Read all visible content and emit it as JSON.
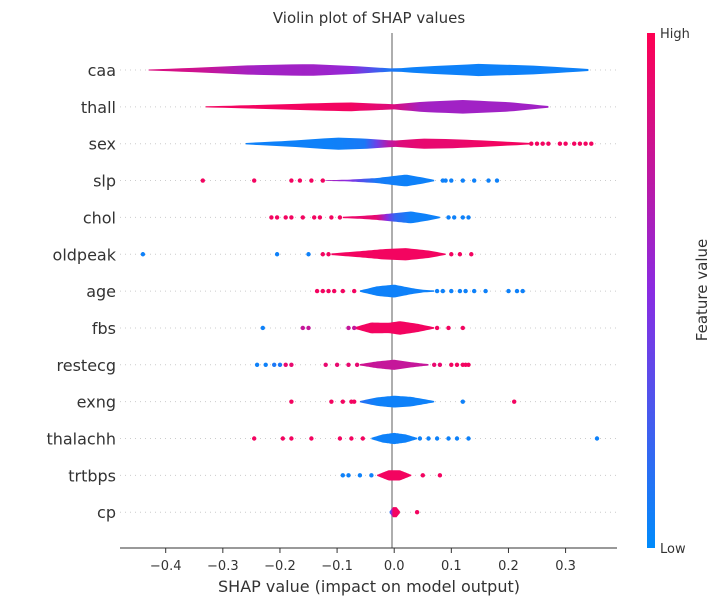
{
  "chart_data": {
    "type": "violin",
    "title": "Violin plot of SHAP values",
    "xlabel": "SHAP value (impact on model output)",
    "xlim": [
      -0.48,
      0.39
    ],
    "xticks": [
      -0.4,
      -0.3,
      -0.2,
      -0.1,
      0.0,
      0.1,
      0.2,
      0.3
    ],
    "xtick_labels": [
      "−0.4",
      "−0.3",
      "−0.2",
      "−0.1",
      "0.0",
      "0.1",
      "0.2",
      "0.3"
    ],
    "colorbar": {
      "label": "Feature value",
      "high": "High",
      "low": "Low",
      "high_color": "#ff0052",
      "mid_color": "#8a2be2",
      "low_color": "#008bfb"
    },
    "features": [
      {
        "name": "caa",
        "range": [
          -0.43,
          0.34
        ],
        "violin": [
          [
            -0.43,
            0.03,
            0.85
          ],
          [
            -0.35,
            0.13,
            0.8
          ],
          [
            -0.25,
            0.28,
            0.6
          ],
          [
            -0.15,
            0.35,
            0.6
          ],
          [
            -0.08,
            0.25,
            0.55
          ],
          [
            0.0,
            0.08,
            0.05
          ],
          [
            0.05,
            0.2,
            0.05
          ],
          [
            0.15,
            0.36,
            0.05
          ],
          [
            0.25,
            0.25,
            0.05
          ],
          [
            0.34,
            0.06,
            0.05
          ]
        ],
        "outliers": []
      },
      {
        "name": "thall",
        "range": [
          -0.33,
          0.27
        ],
        "violin": [
          [
            -0.33,
            0.03,
            0.95
          ],
          [
            -0.25,
            0.1,
            0.95
          ],
          [
            -0.15,
            0.2,
            0.95
          ],
          [
            -0.08,
            0.26,
            0.95
          ],
          [
            0.0,
            0.15,
            0.85
          ],
          [
            0.05,
            0.3,
            0.6
          ],
          [
            0.12,
            0.4,
            0.6
          ],
          [
            0.2,
            0.28,
            0.6
          ],
          [
            0.27,
            0.05,
            0.6
          ]
        ],
        "outliers": []
      },
      {
        "name": "sex",
        "range": [
          -0.26,
          0.24
        ],
        "violin": [
          [
            -0.26,
            0.04,
            0.05
          ],
          [
            -0.18,
            0.18,
            0.05
          ],
          [
            -0.1,
            0.36,
            0.05
          ],
          [
            -0.05,
            0.3,
            0.1
          ],
          [
            0.0,
            0.18,
            0.85
          ],
          [
            0.05,
            0.3,
            0.9
          ],
          [
            0.1,
            0.27,
            0.9
          ],
          [
            0.18,
            0.15,
            0.95
          ],
          [
            0.24,
            0.04,
            0.95
          ]
        ],
        "outliers": [
          [
            0.24,
            0.95
          ],
          [
            0.25,
            0.95
          ],
          [
            0.26,
            0.95
          ],
          [
            0.27,
            0.95
          ],
          [
            0.29,
            0.95
          ],
          [
            0.3,
            0.95
          ],
          [
            0.315,
            0.95
          ],
          [
            0.325,
            0.95
          ],
          [
            0.335,
            0.95
          ],
          [
            0.345,
            0.95
          ]
        ]
      },
      {
        "name": "slp",
        "range": [
          -0.12,
          0.07
        ],
        "violin": [
          [
            -0.12,
            0.02,
            0.65
          ],
          [
            -0.08,
            0.05,
            0.5
          ],
          [
            -0.03,
            0.15,
            0.08
          ],
          [
            0.02,
            0.35,
            0.05
          ],
          [
            0.05,
            0.18,
            0.05
          ],
          [
            0.07,
            0.04,
            0.05
          ]
        ],
        "outliers": [
          [
            -0.335,
            0.95
          ],
          [
            -0.245,
            0.95
          ],
          [
            -0.18,
            0.95
          ],
          [
            -0.165,
            0.95
          ],
          [
            -0.145,
            0.95
          ],
          [
            -0.125,
            0.95
          ],
          [
            0.085,
            0.05
          ],
          [
            0.09,
            0.05
          ],
          [
            0.1,
            0.05
          ],
          [
            0.12,
            0.05
          ],
          [
            0.14,
            0.05
          ],
          [
            0.165,
            0.05
          ],
          [
            0.18,
            0.05
          ]
        ]
      },
      {
        "name": "chol",
        "range": [
          -0.09,
          0.08
        ],
        "violin": [
          [
            -0.09,
            0.04,
            0.95
          ],
          [
            -0.06,
            0.08,
            0.9
          ],
          [
            -0.03,
            0.15,
            0.9
          ],
          [
            0.0,
            0.25,
            0.2
          ],
          [
            0.03,
            0.35,
            0.05
          ],
          [
            0.06,
            0.18,
            0.05
          ],
          [
            0.08,
            0.04,
            0.05
          ]
        ],
        "outliers": [
          [
            -0.215,
            0.95
          ],
          [
            -0.205,
            0.95
          ],
          [
            -0.19,
            0.95
          ],
          [
            -0.18,
            0.95
          ],
          [
            -0.16,
            0.95
          ],
          [
            -0.14,
            0.95
          ],
          [
            -0.13,
            0.95
          ],
          [
            -0.11,
            0.95
          ],
          [
            -0.095,
            0.95
          ],
          [
            0.095,
            0.05
          ],
          [
            0.105,
            0.05
          ],
          [
            0.12,
            0.05
          ],
          [
            0.13,
            0.05
          ]
        ]
      },
      {
        "name": "oldpeak",
        "range": [
          -0.11,
          0.09
        ],
        "violin": [
          [
            -0.11,
            0.05,
            0.95
          ],
          [
            -0.06,
            0.18,
            0.95
          ],
          [
            -0.02,
            0.3,
            0.95
          ],
          [
            0.02,
            0.36,
            0.95
          ],
          [
            0.06,
            0.22,
            0.95
          ],
          [
            0.09,
            0.04,
            0.95
          ]
        ],
        "outliers": [
          [
            -0.44,
            0.05
          ],
          [
            -0.205,
            0.05
          ],
          [
            -0.15,
            0.05
          ],
          [
            -0.125,
            0.95
          ],
          [
            -0.115,
            0.95
          ],
          [
            0.1,
            0.95
          ],
          [
            0.115,
            0.95
          ],
          [
            0.135,
            0.95
          ]
        ]
      },
      {
        "name": "age",
        "range": [
          -0.06,
          0.07
        ],
        "violin": [
          [
            -0.06,
            0.04,
            0.05
          ],
          [
            -0.03,
            0.28,
            0.05
          ],
          [
            0.0,
            0.38,
            0.05
          ],
          [
            0.03,
            0.18,
            0.05
          ],
          [
            0.05,
            0.08,
            0.05
          ],
          [
            0.07,
            0.04,
            0.05
          ]
        ],
        "outliers": [
          [
            -0.135,
            0.95
          ],
          [
            -0.125,
            0.95
          ],
          [
            -0.115,
            0.95
          ],
          [
            -0.105,
            0.95
          ],
          [
            -0.09,
            0.95
          ],
          [
            -0.07,
            0.95
          ],
          [
            0.075,
            0.05
          ],
          [
            0.085,
            0.05
          ],
          [
            0.1,
            0.05
          ],
          [
            0.115,
            0.05
          ],
          [
            0.125,
            0.05
          ],
          [
            0.14,
            0.05
          ],
          [
            0.16,
            0.05
          ],
          [
            0.2,
            0.05
          ],
          [
            0.215,
            0.05
          ],
          [
            0.225,
            0.05
          ]
        ]
      },
      {
        "name": "fbs",
        "range": [
          -0.07,
          0.07
        ],
        "violin": [
          [
            -0.07,
            0.04,
            0.95
          ],
          [
            -0.04,
            0.32,
            0.95
          ],
          [
            -0.01,
            0.3,
            0.95
          ],
          [
            0.01,
            0.4,
            0.95
          ],
          [
            0.04,
            0.25,
            0.95
          ],
          [
            0.07,
            0.04,
            0.95
          ]
        ],
        "outliers": [
          [
            -0.23,
            0.05
          ],
          [
            -0.16,
            0.75
          ],
          [
            -0.15,
            0.75
          ],
          [
            -0.08,
            0.75
          ],
          [
            -0.07,
            0.75
          ],
          [
            0.075,
            0.95
          ],
          [
            0.095,
            0.95
          ],
          [
            0.12,
            0.95
          ]
        ]
      },
      {
        "name": "restecg",
        "range": [
          -0.06,
          0.06
        ],
        "violin": [
          [
            -0.06,
            0.04,
            0.8
          ],
          [
            -0.03,
            0.2,
            0.75
          ],
          [
            0.0,
            0.3,
            0.75
          ],
          [
            0.03,
            0.15,
            0.75
          ],
          [
            0.06,
            0.04,
            0.75
          ]
        ],
        "outliers": [
          [
            -0.24,
            0.05
          ],
          [
            -0.225,
            0.05
          ],
          [
            -0.21,
            0.1
          ],
          [
            -0.2,
            0.1
          ],
          [
            -0.19,
            0.9
          ],
          [
            -0.18,
            0.9
          ],
          [
            -0.12,
            0.9
          ],
          [
            -0.1,
            0.9
          ],
          [
            -0.08,
            0.9
          ],
          [
            -0.065,
            0.9
          ],
          [
            0.07,
            0.9
          ],
          [
            0.08,
            0.9
          ],
          [
            0.1,
            0.95
          ],
          [
            0.11,
            0.95
          ],
          [
            0.12,
            0.95
          ],
          [
            0.125,
            0.95
          ],
          [
            0.13,
            0.95
          ]
        ]
      },
      {
        "name": "exng",
        "range": [
          -0.06,
          0.07
        ],
        "violin": [
          [
            -0.06,
            0.04,
            0.15
          ],
          [
            -0.03,
            0.25,
            0.05
          ],
          [
            0.0,
            0.35,
            0.05
          ],
          [
            0.03,
            0.28,
            0.05
          ],
          [
            0.07,
            0.04,
            0.05
          ]
        ],
        "outliers": [
          [
            -0.18,
            0.95
          ],
          [
            -0.11,
            0.95
          ],
          [
            -0.09,
            0.95
          ],
          [
            -0.075,
            0.95
          ],
          [
            -0.07,
            0.95
          ],
          [
            0.12,
            0.05
          ],
          [
            0.21,
            0.95
          ]
        ]
      },
      {
        "name": "thalachh",
        "range": [
          -0.04,
          0.04
        ],
        "violin": [
          [
            -0.04,
            0.04,
            0.05
          ],
          [
            -0.02,
            0.24,
            0.05
          ],
          [
            0.0,
            0.33,
            0.05
          ],
          [
            0.02,
            0.24,
            0.05
          ],
          [
            0.04,
            0.04,
            0.05
          ]
        ],
        "outliers": [
          [
            -0.245,
            0.95
          ],
          [
            -0.195,
            0.95
          ],
          [
            -0.18,
            0.95
          ],
          [
            -0.145,
            0.95
          ],
          [
            -0.095,
            0.95
          ],
          [
            -0.075,
            0.95
          ],
          [
            -0.055,
            0.95
          ],
          [
            0.045,
            0.05
          ],
          [
            0.06,
            0.05
          ],
          [
            0.075,
            0.05
          ],
          [
            0.095,
            0.05
          ],
          [
            0.11,
            0.05
          ],
          [
            0.13,
            0.05
          ],
          [
            0.355,
            0.05
          ]
        ]
      },
      {
        "name": "trtbps",
        "range": [
          -0.03,
          0.03
        ],
        "violin": [
          [
            -0.03,
            0.03,
            0.95
          ],
          [
            -0.01,
            0.3,
            0.95
          ],
          [
            0.01,
            0.3,
            0.95
          ],
          [
            0.03,
            0.03,
            0.95
          ]
        ],
        "outliers": [
          [
            -0.09,
            0.05
          ],
          [
            -0.08,
            0.05
          ],
          [
            -0.06,
            0.05
          ],
          [
            -0.04,
            0.05
          ],
          [
            0.05,
            0.95
          ],
          [
            0.08,
            0.95
          ]
        ]
      },
      {
        "name": "cp",
        "range": [
          -0.008,
          0.01
        ],
        "violin": [
          [
            -0.008,
            0.05,
            0.1
          ],
          [
            -0.002,
            0.3,
            0.95
          ],
          [
            0.004,
            0.3,
            0.95
          ],
          [
            0.01,
            0.05,
            0.95
          ]
        ],
        "outliers": [
          [
            0.04,
            0.95
          ]
        ]
      }
    ]
  }
}
